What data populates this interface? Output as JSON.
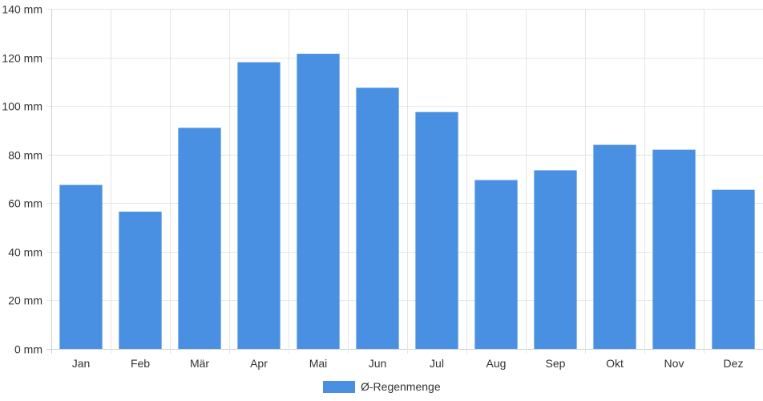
{
  "chart_data": {
    "type": "bar",
    "categories": [
      "Jan",
      "Feb",
      "Mär",
      "Apr",
      "Mai",
      "Jun",
      "Jul",
      "Aug",
      "Sep",
      "Okt",
      "Nov",
      "Dez"
    ],
    "series": [
      {
        "name": "Ø-Regenmenge",
        "color": "#4a90e2",
        "values": [
          67.5,
          56.5,
          91,
          118,
          121.5,
          107.5,
          97.5,
          69.5,
          73.5,
          84,
          82,
          65.5
        ]
      }
    ],
    "ylim": [
      0,
      140
    ],
    "y_ticks": [
      0,
      20,
      40,
      60,
      80,
      100,
      120,
      140
    ],
    "y_tick_labels": [
      "0 mm",
      "20 mm",
      "40 mm",
      "60 mm",
      "80 mm",
      "100 mm",
      "120 mm",
      "140 mm"
    ],
    "grid": true,
    "legend_position": "bottom-center",
    "title": "",
    "xlabel": "",
    "ylabel": ""
  },
  "colors": {
    "bar": "#4a90e2",
    "grid": "#e5e5e5",
    "axis": "#d0d0d0",
    "text": "#333333"
  }
}
